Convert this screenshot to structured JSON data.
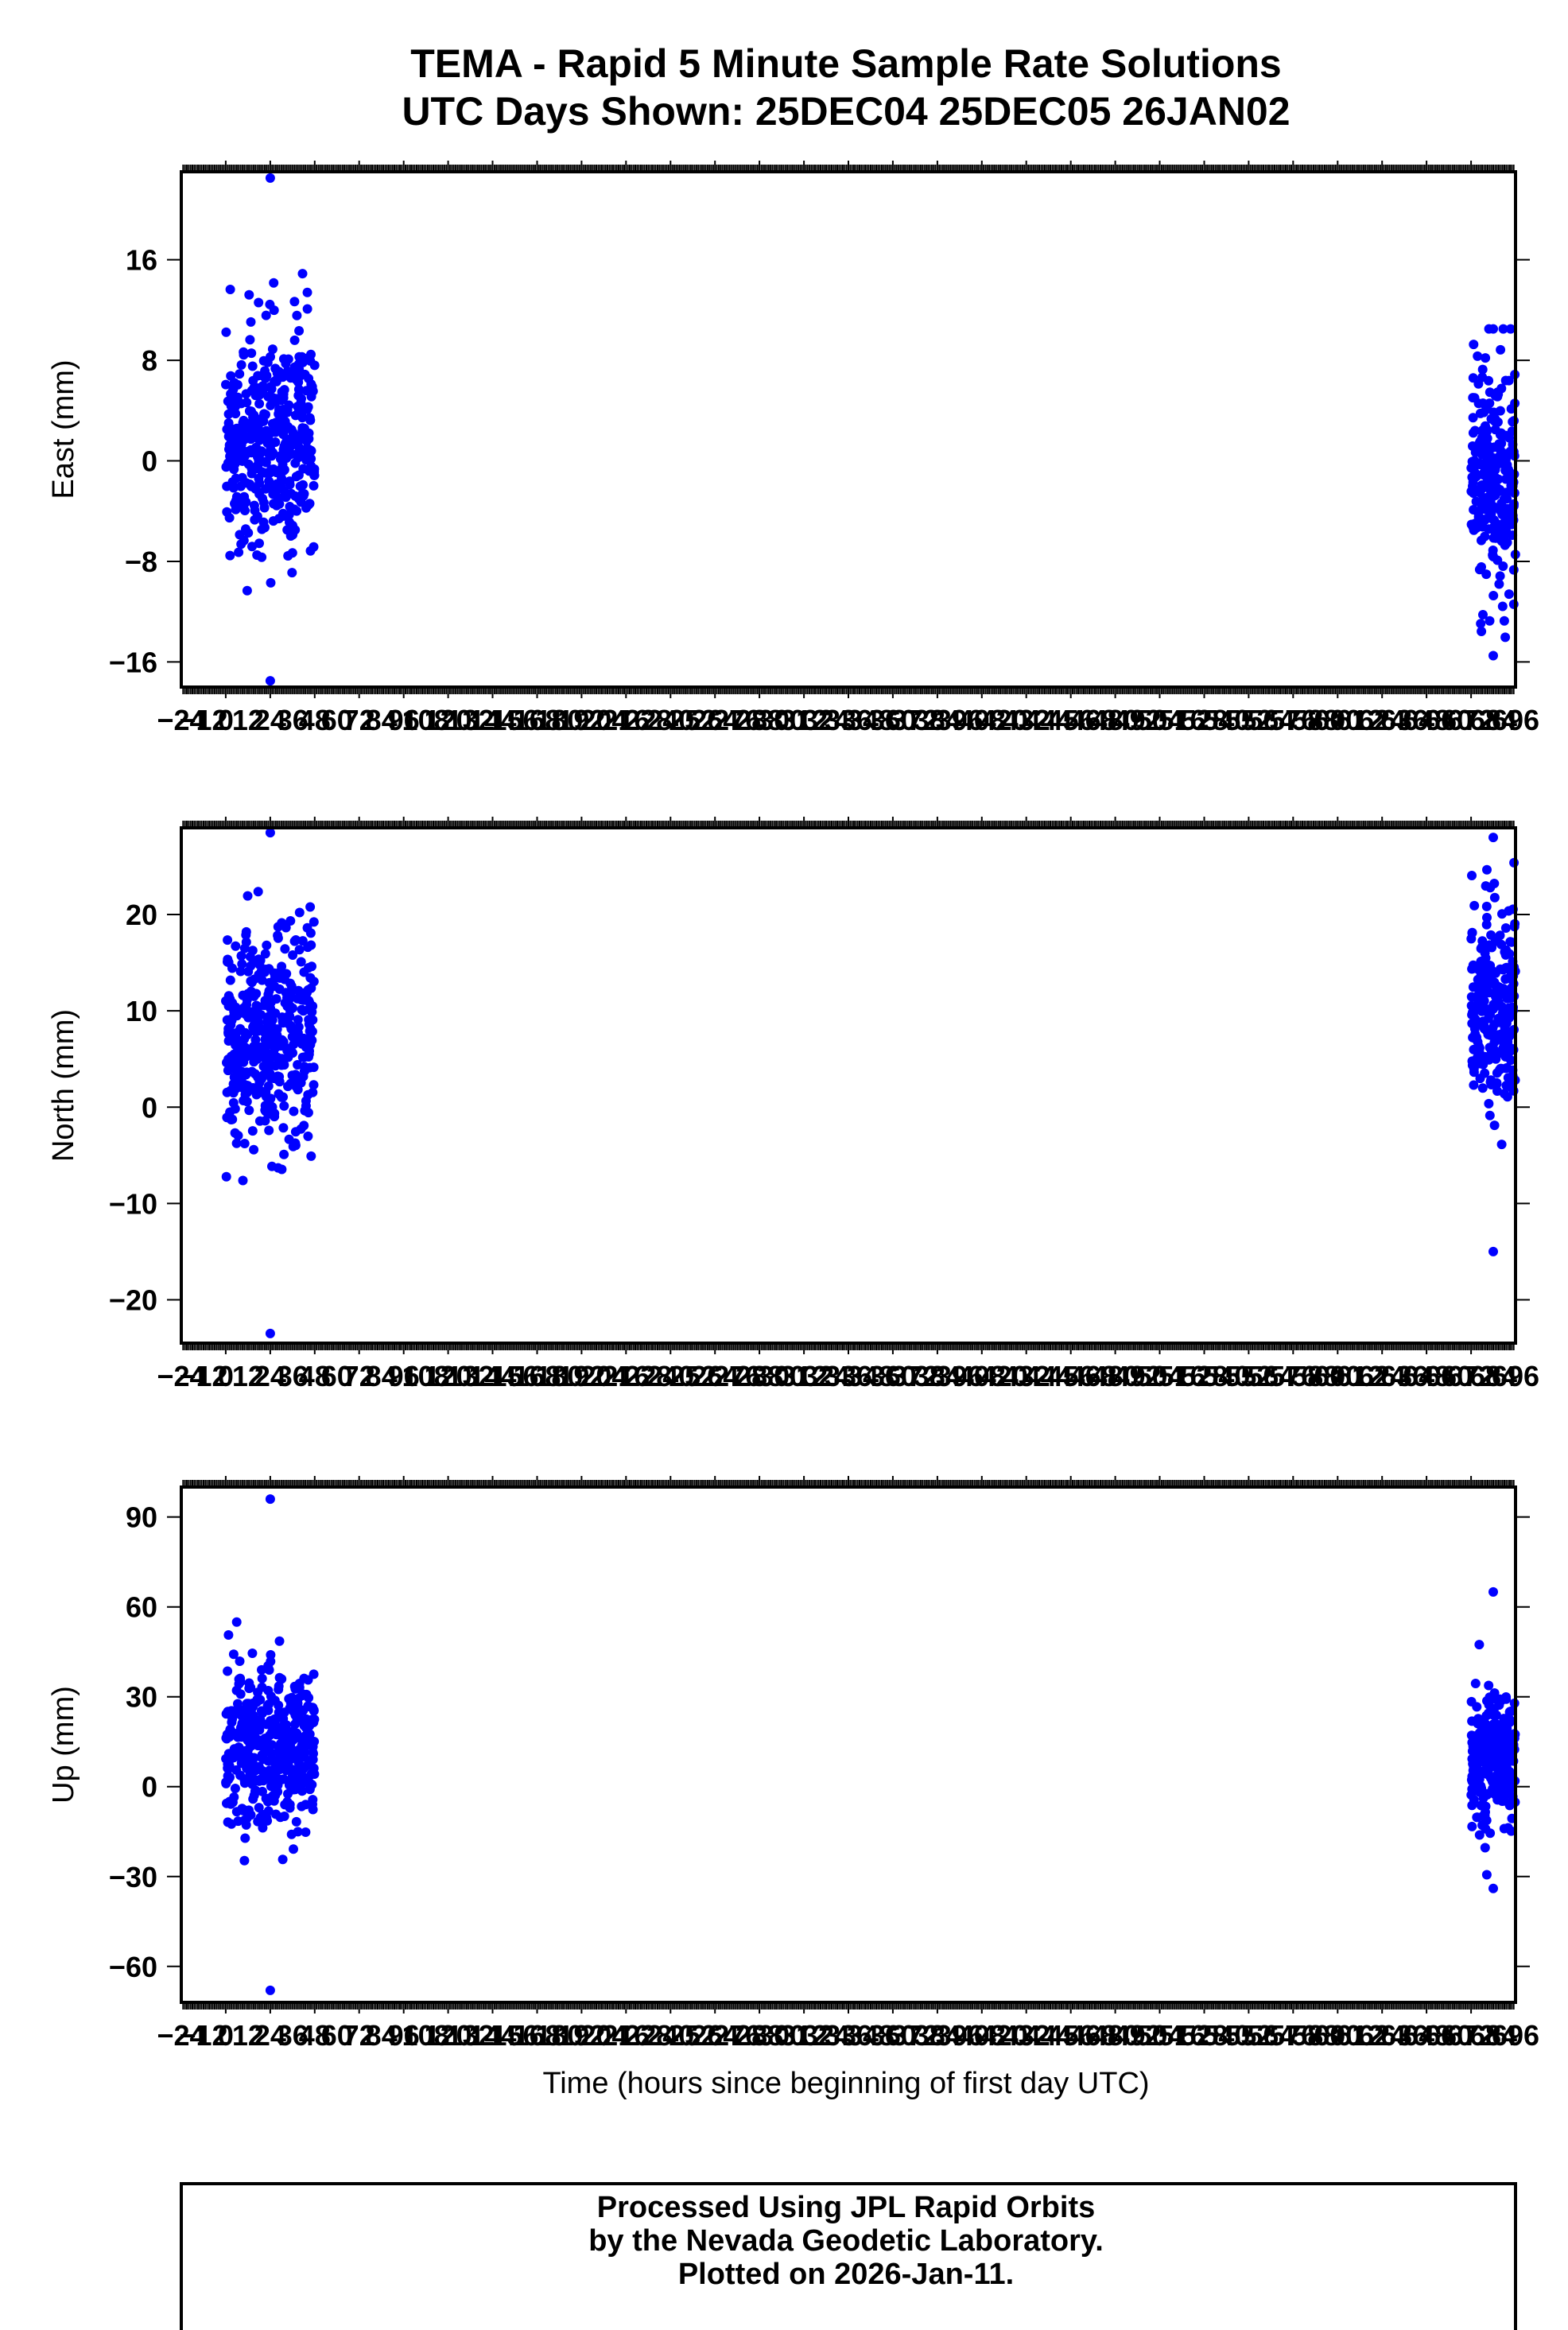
{
  "title": {
    "line1": "TEMA - Rapid 5 Minute Sample Rate Solutions",
    "line2": "UTC Days Shown:  25DEC04 25DEC05 26JAN02"
  },
  "xlabel": "Time (hours since beginning of first day UTC)",
  "footer": {
    "line1": "Processed Using JPL Rapid Orbits",
    "line2": "by the Nevada Geodetic Laboratory.",
    "line3": "Plotted on 2026-Jan-11."
  },
  "colors": {
    "points": "#0000ff",
    "frame": "#000000",
    "background": "#ffffff"
  },
  "chart_data": [
    {
      "type": "scatter",
      "ylabel": "East (mm)",
      "ylim": [
        -18,
        23
      ],
      "yticks": [
        -16,
        -8,
        0,
        8,
        16
      ],
      "xlim": [
        -24,
        696
      ],
      "clusters": [
        {
          "x_range": [
            0,
            48
          ],
          "center": 1.5,
          "spread": 4.5,
          "min": -17.5,
          "max": 22.5,
          "count": 420
        },
        {
          "x_range": [
            672,
            696
          ],
          "center": -2.0,
          "spread": 4.5,
          "min": -15.5,
          "max": 10.5,
          "count": 260
        }
      ]
    },
    {
      "type": "scatter",
      "ylabel": "North (mm)",
      "ylim": [
        -24.5,
        29
      ],
      "yticks": [
        -20,
        -10,
        0,
        10,
        20
      ],
      "xlim": [
        -24,
        696
      ],
      "clusters": [
        {
          "x_range": [
            0,
            48
          ],
          "center": 7.0,
          "spread": 5.5,
          "min": -23.5,
          "max": 28.5,
          "count": 420
        },
        {
          "x_range": [
            672,
            696
          ],
          "center": 11.0,
          "spread": 5.5,
          "min": -15.0,
          "max": 28.0,
          "count": 260
        }
      ]
    },
    {
      "type": "scatter",
      "ylabel": "Up (mm)",
      "ylim": [
        -72,
        100
      ],
      "yticks": [
        -60,
        -30,
        0,
        30,
        60,
        90
      ],
      "xlim": [
        -24,
        696
      ],
      "clusters": [
        {
          "x_range": [
            0,
            48
          ],
          "center": 12.0,
          "spread": 13.0,
          "min": -68.0,
          "max": 96.0,
          "count": 420
        },
        {
          "x_range": [
            672,
            696
          ],
          "center": 8.0,
          "spread": 11.0,
          "min": -34.0,
          "max": 65.0,
          "count": 260
        }
      ]
    }
  ]
}
